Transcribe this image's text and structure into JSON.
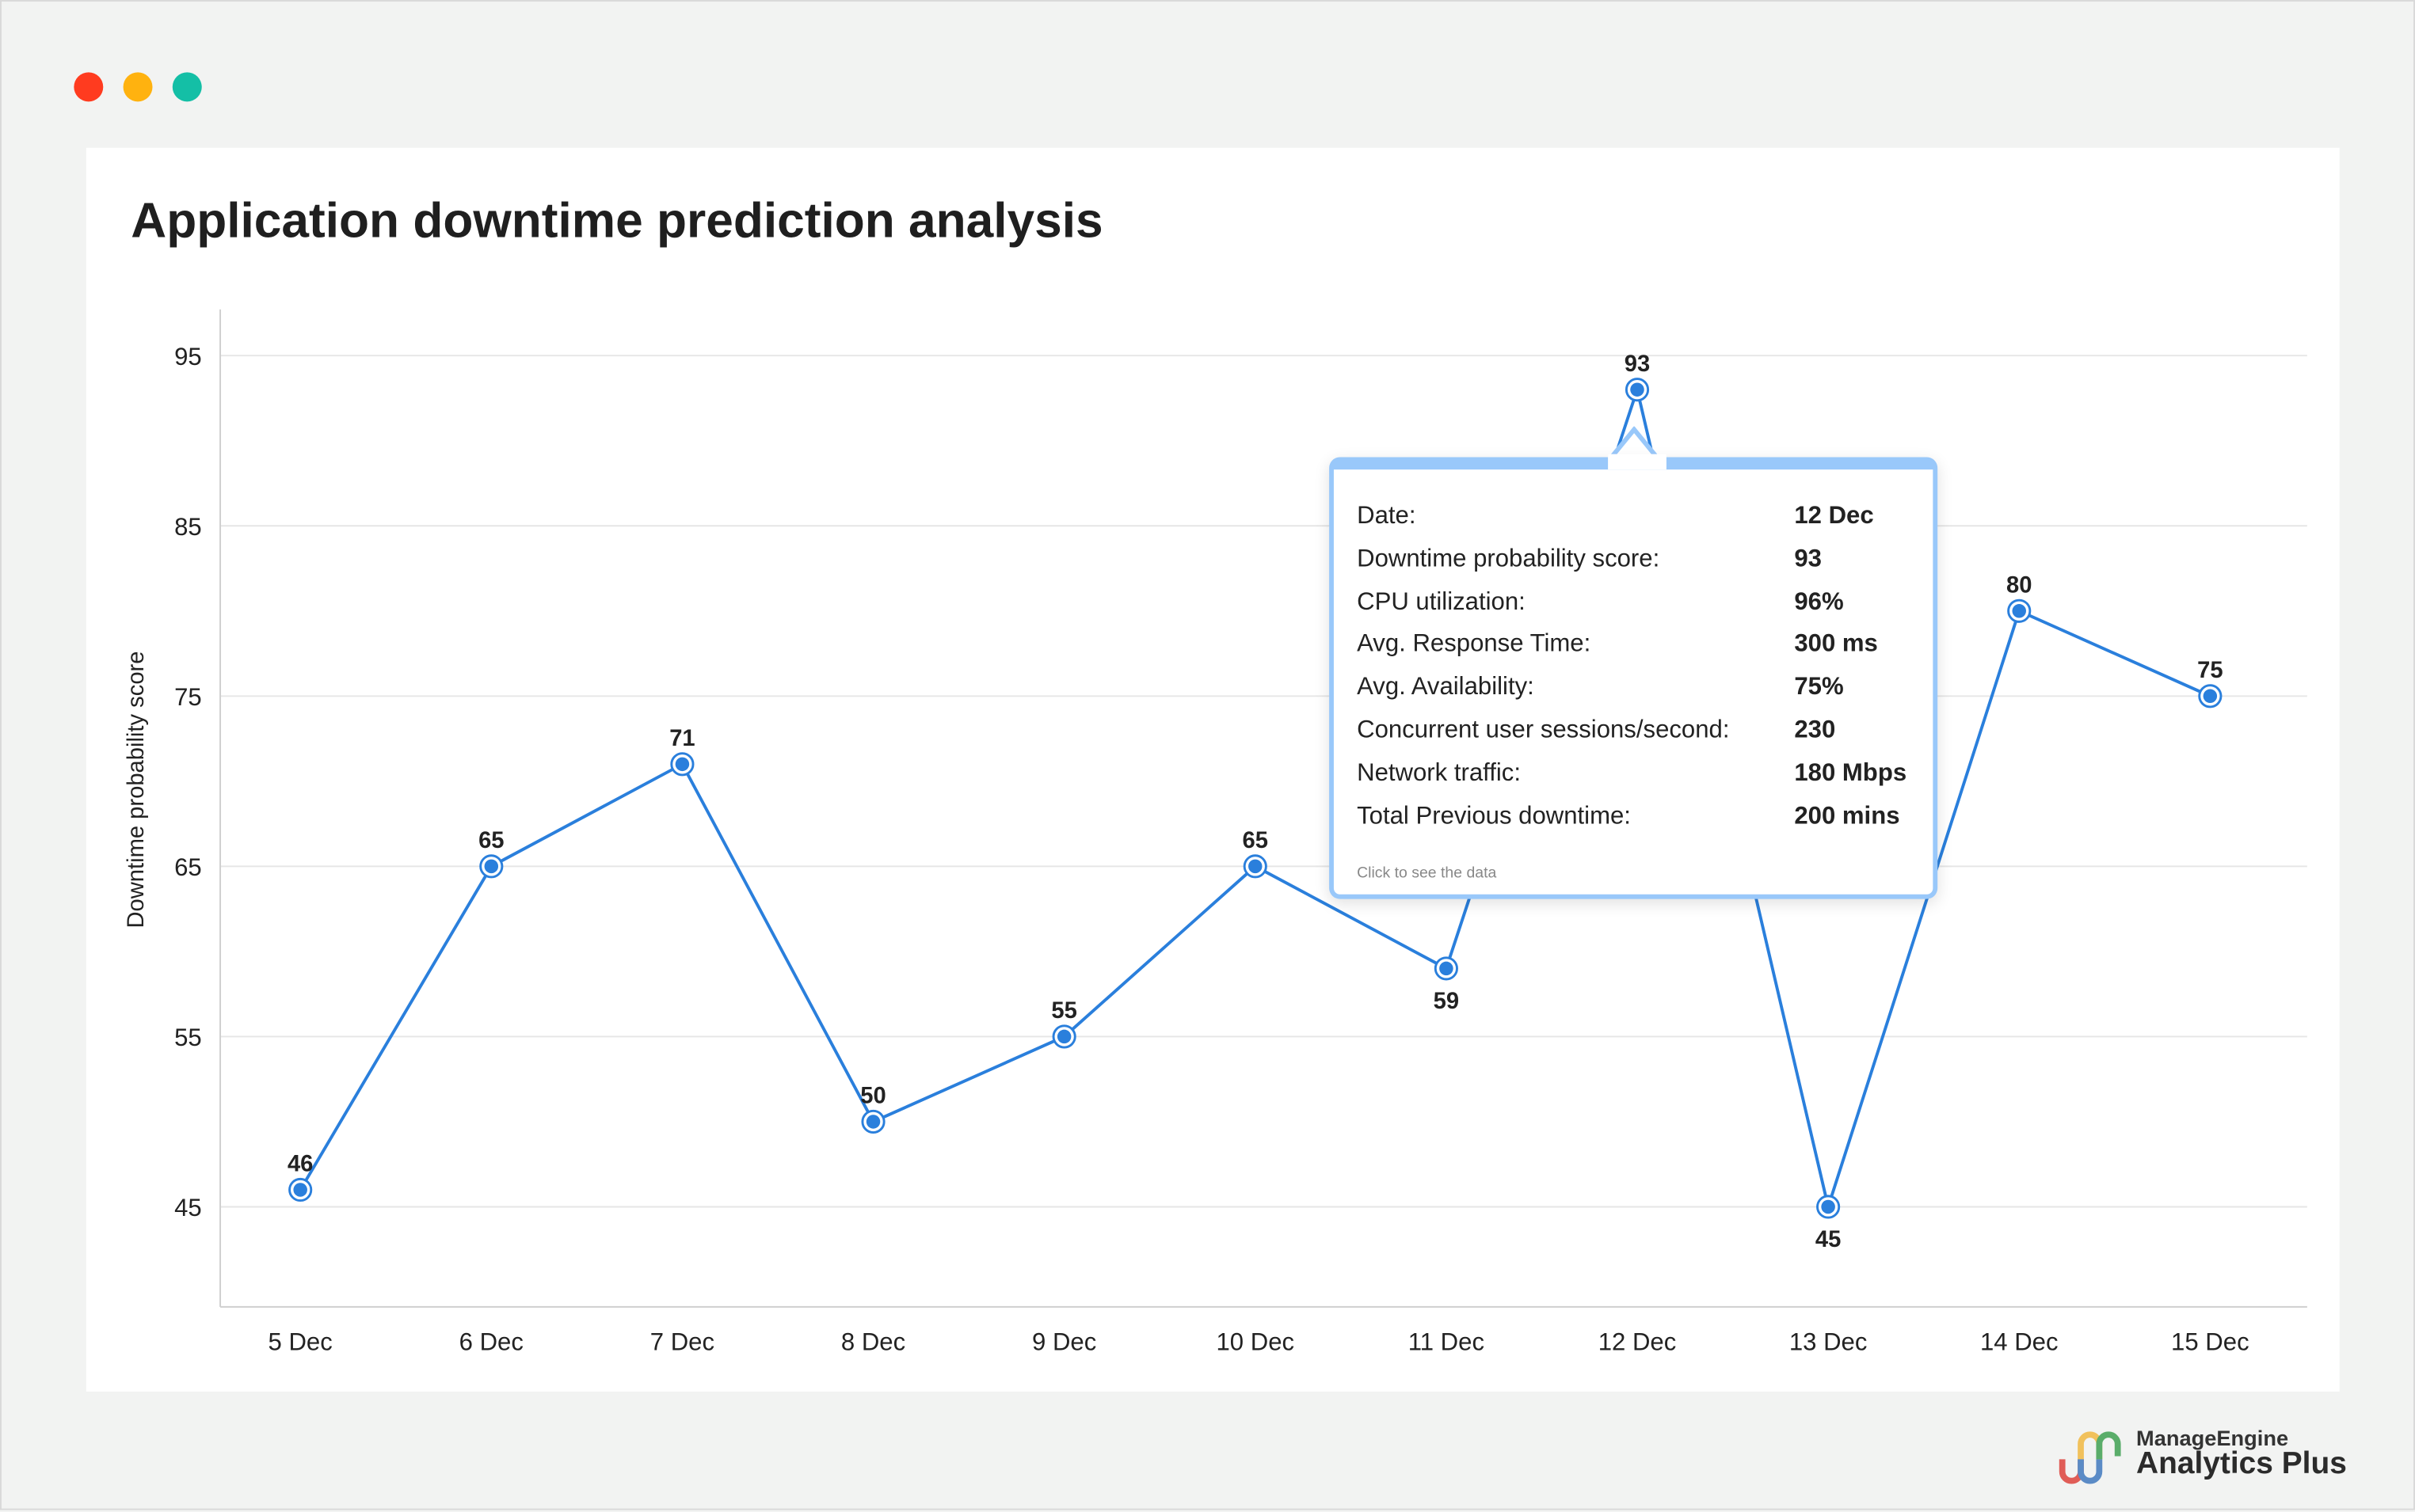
{
  "window_controls": {
    "colors": [
      "#ff3b1f",
      "#ffb20f",
      "#14bfa6"
    ]
  },
  "title": "Application downtime prediction analysis",
  "chart_data": {
    "type": "line",
    "title": "Application downtime prediction analysis",
    "xlabel": "",
    "ylabel": "Downtime probability score",
    "categories": [
      "5 Dec",
      "6 Dec",
      "7 Dec",
      "8 Dec",
      "9 Dec",
      "10 Dec",
      "11 Dec",
      "12 Dec",
      "13 Dec",
      "14 Dec",
      "15 Dec"
    ],
    "values": [
      46,
      65,
      71,
      50,
      55,
      65,
      59,
      93,
      45,
      80,
      75
    ],
    "yticks": [
      45,
      55,
      65,
      75,
      85,
      95
    ],
    "ylim": [
      39,
      98
    ],
    "grid": true,
    "line_color": "#2a7fdc",
    "legend": "none"
  },
  "tooltip": {
    "rows": [
      {
        "label": "Date:",
        "value": "12 Dec"
      },
      {
        "label": "Downtime probability score:",
        "value": "93"
      },
      {
        "label": "CPU utilization:",
        "value": "96%"
      },
      {
        "label": "Avg. Response Time:",
        "value": "300 ms"
      },
      {
        "label": "Avg. Availability:",
        "value": "75%"
      },
      {
        "label": "Concurrent user sessions/second:",
        "value": "230"
      },
      {
        "label": "Network traffic:",
        "value": "180 Mbps"
      },
      {
        "label": "Total Previous downtime:",
        "value": "200 mins"
      }
    ],
    "footer": "Click to see the data",
    "accent": "#99c8fa"
  },
  "logo": {
    "brand": "ManageEngine",
    "product": "Analytics Plus"
  }
}
